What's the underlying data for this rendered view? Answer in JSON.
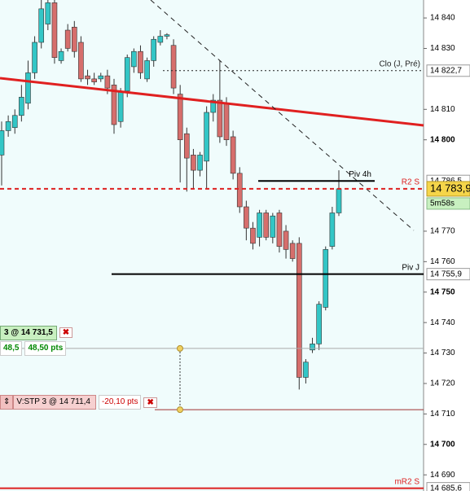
{
  "chart_data": {
    "type": "candlestick",
    "open": [
      14795,
      14803,
      14804,
      14808,
      14812,
      14822,
      14832,
      14838,
      14845,
      14826,
      14836,
      14837,
      14832,
      14821,
      14820,
      14820,
      14821,
      14818,
      14806,
      14816,
      14824,
      14829,
      14820,
      14826,
      14832,
      14834,
      14831,
      14815,
      14802,
      14795,
      14790,
      14793,
      14809,
      14813,
      14812,
      14801,
      14789,
      14778,
      14771,
      14768,
      14776,
      14768,
      14776,
      14770,
      14766,
      14766,
      14722,
      14731,
      14733,
      14745,
      14765,
      14776
    ],
    "high": [
      14806,
      14808,
      14810,
      14818,
      14826,
      14834,
      14846,
      14846,
      14846,
      14830,
      14838,
      14839,
      14834,
      14823,
      14822,
      14822,
      14823,
      14820,
      14817,
      14828,
      14830,
      14831,
      14827,
      14834,
      14836,
      14835,
      14833,
      14818,
      14804,
      14797,
      14796,
      14811,
      14815,
      14826,
      14814,
      14803,
      14791,
      14780,
      14773,
      14777,
      14777,
      14776,
      14777,
      14772,
      14767,
      14768,
      14728,
      14735,
      14747,
      14765,
      14778,
      14790
    ],
    "low": [
      14785,
      14801,
      14802,
      14806,
      14810,
      14820,
      14830,
      14836,
      14825,
      14825,
      14829,
      14827,
      14819,
      14818,
      14818,
      14819,
      14815,
      14802,
      14804,
      14814,
      14822,
      14820,
      14819,
      14824,
      14831,
      14833,
      14815,
      14786,
      14783,
      14784,
      14788,
      14784,
      14806,
      14799,
      14798,
      14787,
      14776,
      14767,
      14764,
      14765,
      14767,
      14766,
      14763,
      14761,
      14760,
      14718,
      14720,
      14730,
      14731,
      14744,
      14764,
      14775
    ],
    "close": [
      14803,
      14806,
      14808,
      14814,
      14822,
      14832,
      14843,
      14845,
      14827,
      14829,
      14830,
      14829,
      14820,
      14820,
      14819,
      14821,
      14817,
      14805,
      14816,
      14827,
      14829,
      14822,
      14826,
      14833,
      14834,
      14834.5,
      14817,
      14800,
      14794,
      14790,
      14795,
      14809,
      14813,
      14801,
      14800,
      14789,
      14778,
      14771,
      14766,
      14776,
      14768,
      14775,
      14765,
      14764,
      14761,
      14722,
      14727,
      14733,
      14746,
      14764,
      14776,
      14783.9
    ],
    "up_color": "#33c6c6",
    "down_color": "#d66e6c",
    "ylim": [
      14684.7,
      14845.9
    ],
    "yticks": [
      {
        "value": 14690,
        "label": "14 690"
      },
      {
        "value": 14700,
        "label": "14 700"
      },
      {
        "value": 14710,
        "label": "14 710"
      },
      {
        "value": 14720,
        "label": "14 720"
      },
      {
        "value": 14730,
        "label": "14 730"
      },
      {
        "value": 14740,
        "label": "14 740"
      },
      {
        "value": 14750,
        "label": "14 750"
      },
      {
        "value": 14760,
        "label": "14 760"
      },
      {
        "value": 14770,
        "label": "14 770"
      },
      {
        "value": 14800,
        "label": "14 800"
      },
      {
        "value": 14810,
        "label": "14 810"
      },
      {
        "value": 14830,
        "label": "14 830"
      },
      {
        "value": 14840,
        "label": "14 840"
      }
    ],
    "levels": [
      {
        "name": "Clo (J, Pré)",
        "value": 14822.7,
        "value_label": "14 822,7",
        "color": "#222222"
      },
      {
        "name": "Piv 4h",
        "value": 14786.5,
        "value_label": "14 786,5",
        "color": "#000000"
      },
      {
        "name": "R2 S",
        "value": 14783.9,
        "color": "#dd2020"
      },
      {
        "name": "Piv J",
        "value": 14755.9,
        "value_label": "14 755,9",
        "color": "#000000"
      },
      {
        "name": "mR2 S",
        "value": 14685.6,
        "value_label": "14 685,6",
        "color": "#dd2020"
      }
    ],
    "last_price": {
      "value": 14783.9,
      "label": "14 783,9"
    },
    "countdown": "5m58s",
    "orders": [
      {
        "text": "3 @ 14 731,5",
        "price": 14731.5,
        "gain": "48,5",
        "points": "48,50 pts"
      },
      {
        "text": "V:STP 3 @ 14 711,4",
        "price": 14711.4,
        "points": "-20,10 pts"
      }
    ]
  }
}
